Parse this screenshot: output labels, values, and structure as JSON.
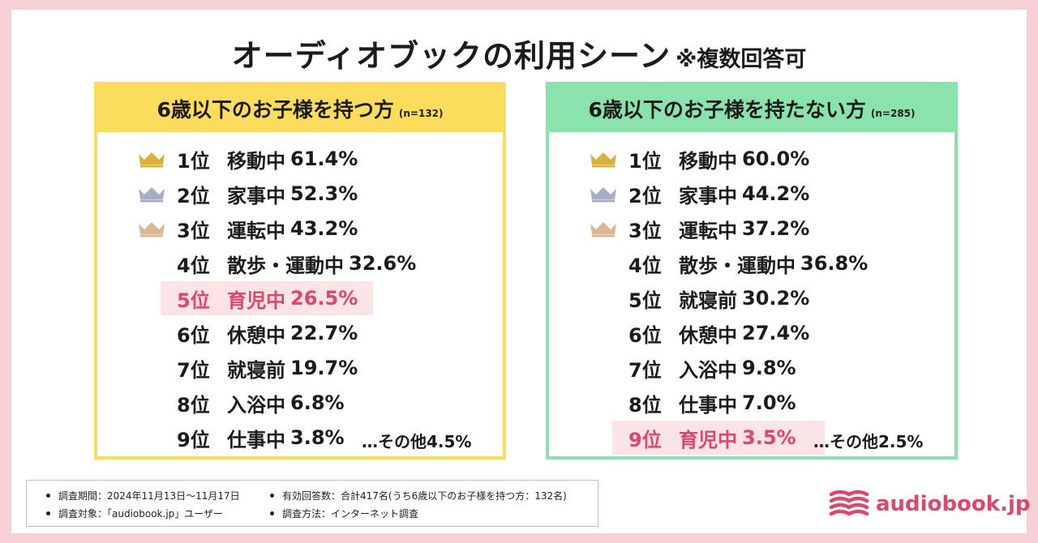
{
  "title": "オーディオブックの利用シーン",
  "title_note": "※複数回答可",
  "colors": {
    "gold": "#d9b13a",
    "silver": "#a6adc6",
    "bronze": "#d8b894",
    "highlight": "#e0456a",
    "left_panel": "#fbdc5c",
    "right_panel": "#8ae3ad"
  },
  "chart_data": [
    {
      "type": "table",
      "title": "6歳以下のお子様を持つ方",
      "n": "(n=132)",
      "rankings": [
        {
          "rank": "1位",
          "scene": "移動中",
          "value": "61.4%",
          "crown": "gold"
        },
        {
          "rank": "2位",
          "scene": "家事中",
          "value": "52.3%",
          "crown": "silver"
        },
        {
          "rank": "3位",
          "scene": "運転中",
          "value": "43.2%",
          "crown": "bronze"
        },
        {
          "rank": "4位",
          "scene": "散歩・運動中",
          "value": "32.6%",
          "crown": ""
        },
        {
          "rank": "5位",
          "scene": "育児中",
          "value": "26.5%",
          "crown": "",
          "highlight": true
        },
        {
          "rank": "6位",
          "scene": "休憩中",
          "value": "22.7%",
          "crown": ""
        },
        {
          "rank": "7位",
          "scene": "就寝前",
          "value": "19.7%",
          "crown": ""
        },
        {
          "rank": "8位",
          "scene": "入浴中",
          "value": "6.8%",
          "crown": ""
        },
        {
          "rank": "9位",
          "scene": "仕事中",
          "value": "3.8%",
          "crown": ""
        }
      ],
      "other": "…その他4.5%"
    },
    {
      "type": "table",
      "title": "6歳以下のお子様を持たない方",
      "n": "(n=285)",
      "rankings": [
        {
          "rank": "1位",
          "scene": "移動中",
          "value": "60.0%",
          "crown": "gold"
        },
        {
          "rank": "2位",
          "scene": "家事中",
          "value": "44.2%",
          "crown": "silver"
        },
        {
          "rank": "3位",
          "scene": "運転中",
          "value": "37.2%",
          "crown": "bronze"
        },
        {
          "rank": "4位",
          "scene": "散歩・運動中",
          "value": "36.8%",
          "crown": ""
        },
        {
          "rank": "5位",
          "scene": "就寝前",
          "value": "30.2%",
          "crown": ""
        },
        {
          "rank": "6位",
          "scene": "休憩中",
          "value": "27.4%",
          "crown": ""
        },
        {
          "rank": "7位",
          "scene": "入浴中",
          "value": "9.8%",
          "crown": ""
        },
        {
          "rank": "8位",
          "scene": "仕事中",
          "value": "7.0%",
          "crown": ""
        },
        {
          "rank": "9位",
          "scene": "育児中",
          "value": "3.5%",
          "crown": "",
          "highlight": true
        }
      ],
      "other": "…その他2.5%"
    }
  ],
  "footer": {
    "period": "調査期間：2024年11月13日〜11月17日",
    "target": "調査対象：「audiobook.jp」ユーザー",
    "respondents": "有効回答数：合計417名(うち6歳以下のお子様を持つ方：132名)",
    "method": "調査方法：インターネット調査"
  },
  "logo": {
    "text": "audiobook.jp",
    "icon": "book-stack-icon"
  }
}
